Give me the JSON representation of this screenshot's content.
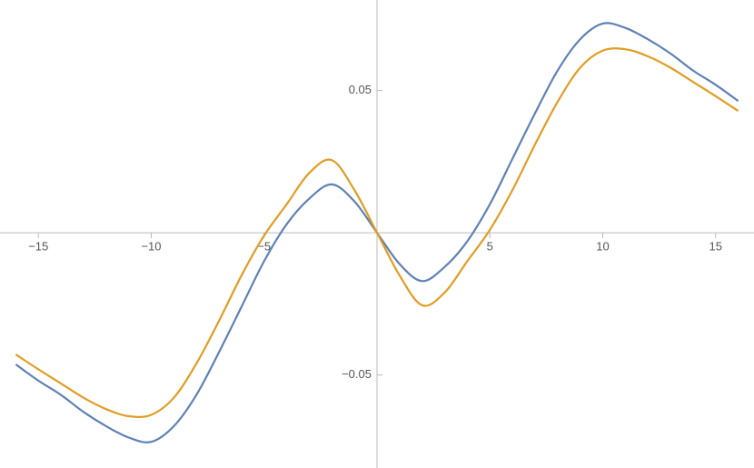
{
  "chart_data": {
    "type": "line",
    "x": [
      -16,
      -15,
      -14,
      -13,
      -12,
      -11,
      -10,
      -9,
      -8,
      -7,
      -6,
      -5,
      -4,
      -3,
      -2,
      -1,
      0,
      1,
      2,
      3,
      4,
      5,
      6,
      7,
      8,
      9,
      10,
      11,
      12,
      13,
      14,
      15,
      16
    ],
    "series": [
      {
        "color": "#5e81b5",
        "values": [
          -0.0463,
          -0.052,
          -0.057,
          -0.063,
          -0.068,
          -0.072,
          -0.0735,
          -0.068,
          -0.057,
          -0.042,
          -0.026,
          -0.01,
          0.003,
          0.012,
          0.017,
          0.011,
          0,
          -0.011,
          -0.017,
          -0.012,
          -0.003,
          0.01,
          0.026,
          0.042,
          0.057,
          0.068,
          0.0735,
          0.072,
          0.068,
          0.063,
          0.057,
          0.052,
          0.0463
        ]
      },
      {
        "color": "#e19c24",
        "values": [
          -0.0428,
          -0.048,
          -0.053,
          -0.058,
          -0.062,
          -0.0645,
          -0.064,
          -0.058,
          -0.046,
          -0.031,
          -0.015,
          -0.001,
          0.01,
          0.021,
          0.0255,
          0.015,
          0,
          -0.015,
          -0.0255,
          -0.021,
          -0.01,
          0.001,
          0.015,
          0.031,
          0.046,
          0.058,
          0.064,
          0.0645,
          0.062,
          0.058,
          0.053,
          0.048,
          0.0428
        ]
      }
    ],
    "xlim": [
      -16.7,
      16.7
    ],
    "ylim": [
      -0.0827,
      0.0818
    ],
    "xticks": [
      {
        "value": -15,
        "label": "−15"
      },
      {
        "value": -10,
        "label": "−10"
      },
      {
        "value": -5,
        "label": "−5"
      },
      5,
      10,
      15
    ],
    "yticks": [
      0.05,
      {
        "value": -0.05,
        "label": "−0.05"
      }
    ]
  }
}
